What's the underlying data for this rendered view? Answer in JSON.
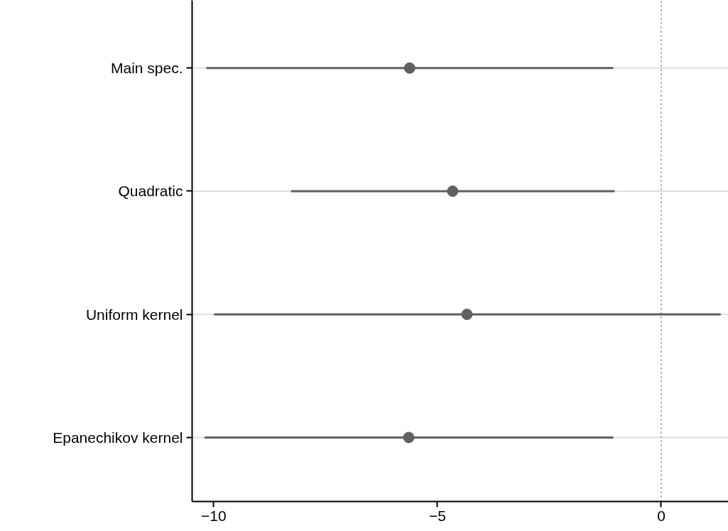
{
  "chart_data": {
    "type": "scatter",
    "orientation": "horizontal",
    "categories": [
      "Main spec.",
      "Quadratic",
      "Uniform kernel",
      "Epanechikov kernel"
    ],
    "values": [
      -5.62,
      -4.66,
      -4.34,
      -5.64
    ],
    "errors": [
      [
        -10.16,
        -1.07
      ],
      [
        -8.27,
        -1.04
      ],
      [
        -9.99,
        1.33
      ],
      [
        -10.2,
        -1.07
      ]
    ],
    "color": "#606060",
    "marker": "circle",
    "xlim": [
      -10.48,
      1.5
    ],
    "xticks": [
      {
        "value": -10,
        "label": "−10"
      },
      {
        "value": -5,
        "label": "−5"
      },
      0
    ],
    "grid": "y",
    "ref_lines": [
      {
        "axis": "x",
        "value": 0,
        "line_style": "dotted",
        "color": "#808080"
      }
    ]
  }
}
